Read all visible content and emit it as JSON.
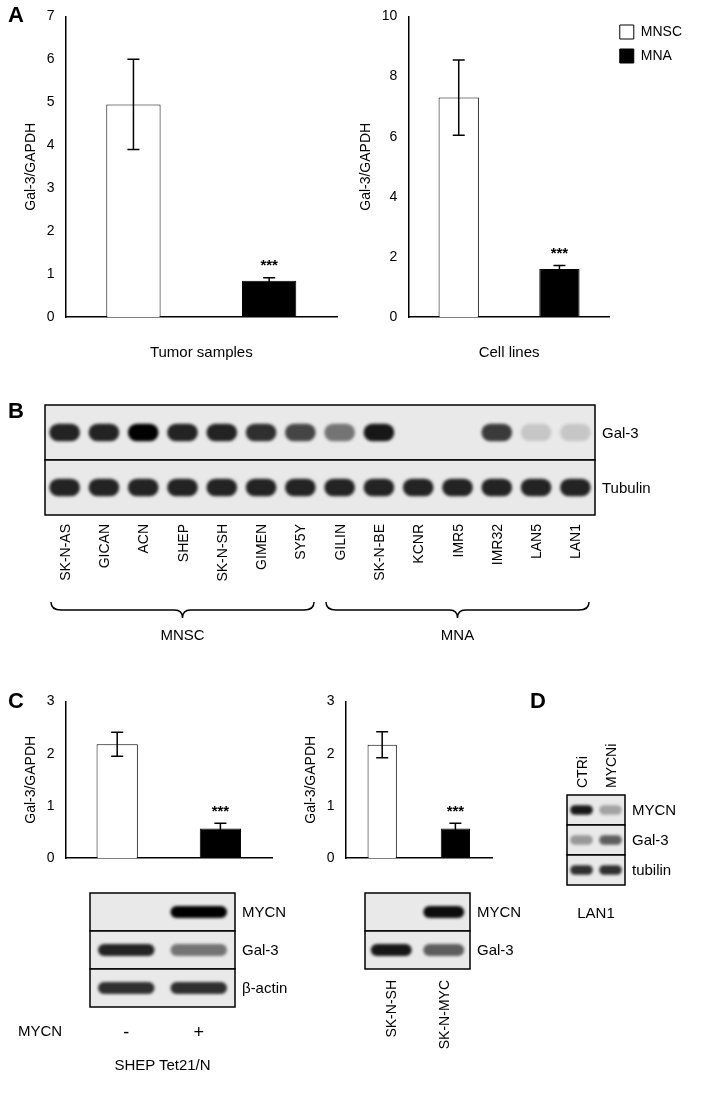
{
  "chart_data": [
    {
      "type": "bar",
      "y_label": "Gal-3/GAPDH",
      "x_label": "Tumor samples",
      "categories": [
        null,
        null
      ],
      "values": [
        4.95,
        0.85
      ],
      "colors": [
        "#ffffff",
        "#000000"
      ],
      "errors": [
        1.05,
        0.07
      ],
      "annotations": [
        null,
        "***"
      ],
      "ylim": [
        0,
        7
      ],
      "yticks": [
        0,
        1,
        2,
        3,
        4,
        5,
        6,
        7
      ],
      "grid": false
    },
    {
      "type": "bar",
      "y_label": "Gal-3/GAPDH",
      "x_label": "Cell lines",
      "categories": [
        null,
        null
      ],
      "series": [
        {
          "name": "MNSC",
          "color": "#ffffff",
          "values": [
            7.3,
            null
          ],
          "errors": [
            1.25,
            null
          ]
        },
        {
          "name": "MNA",
          "color": "#000000",
          "values": [
            null,
            1.6
          ],
          "errors": [
            null,
            0.12
          ]
        }
      ],
      "annotations": [
        null,
        "***"
      ],
      "legend": "upper right",
      "ylim": [
        0,
        10
      ],
      "yticks": [
        0,
        2,
        4,
        6,
        8,
        10
      ],
      "grid": false
    },
    {
      "type": "bar",
      "y_label": "Gal-3/GAPDH",
      "categories": [
        null,
        null
      ],
      "values": [
        2.18,
        0.57
      ],
      "colors": [
        "#ffffff",
        "#000000"
      ],
      "errors": [
        0.23,
        0.1
      ],
      "annotations": [
        null,
        "***"
      ],
      "ylim": [
        0,
        3
      ],
      "yticks": [
        0,
        1,
        2,
        3
      ],
      "grid": false
    },
    {
      "type": "bar",
      "y_label": "Gal-3/GAPDH",
      "categories": [
        null,
        null
      ],
      "values": [
        2.17,
        0.57
      ],
      "colors": [
        "#ffffff",
        "#000000"
      ],
      "errors": [
        0.25,
        0.1
      ],
      "annotations": [
        null,
        "***"
      ],
      "ylim": [
        0,
        3
      ],
      "yticks": [
        0,
        1,
        2,
        3
      ],
      "grid": false
    }
  ],
  "panel_labels": [
    "A",
    "B",
    "C",
    "D"
  ],
  "blots": [
    {
      "rows": [
        "Gal-3",
        "Tubulin"
      ],
      "lanes": [
        "SK-N-AS",
        "GICAN",
        "ACN",
        "SHEP",
        "SK-N-SH",
        "GIMEN",
        "SY5Y",
        "GILIN",
        "SK-N-BE",
        "KCNR",
        "IMR5",
        "IMR32",
        "LAN5",
        "LAN1"
      ],
      "bands": [
        [
          0.85,
          0.85,
          1.0,
          0.85,
          0.85,
          0.8,
          0.7,
          0.5,
          0.9,
          0,
          0,
          0.75,
          0.15,
          0.15
        ],
        [
          0.85,
          0.85,
          0.85,
          0.85,
          0.85,
          0.85,
          0.85,
          0.85,
          0.85,
          0.85,
          0.85,
          0.85,
          0.85,
          0.85
        ]
      ],
      "groups": [
        {
          "label": "MNSC",
          "from": 0,
          "to": 6
        },
        {
          "label": "MNA",
          "from": 7,
          "to": 13
        }
      ]
    },
    {
      "rows": [
        "MYCN",
        "Gal-3",
        "β-actin"
      ],
      "lanes": [
        "-",
        "+"
      ],
      "lane_title": "MYCN",
      "caption": "SHEP Tet21/N",
      "bands": [
        [
          0,
          1.0
        ],
        [
          0.85,
          0.5
        ],
        [
          0.8,
          0.8
        ]
      ]
    },
    {
      "rows": [
        "MYCN",
        "Gal-3"
      ],
      "lanes": [
        "SK-N-SH",
        "SK-N-MYC"
      ],
      "bands": [
        [
          0,
          0.95
        ],
        [
          0.9,
          0.6
        ]
      ]
    },
    {
      "rows": [
        "MYCN",
        "Gal-3",
        "tubilin"
      ],
      "lanes": [
        "CTRi",
        "MYCNi"
      ],
      "caption": "LAN1",
      "bands": [
        [
          0.9,
          0.3
        ],
        [
          0.35,
          0.6
        ],
        [
          0.8,
          0.8
        ]
      ]
    }
  ]
}
